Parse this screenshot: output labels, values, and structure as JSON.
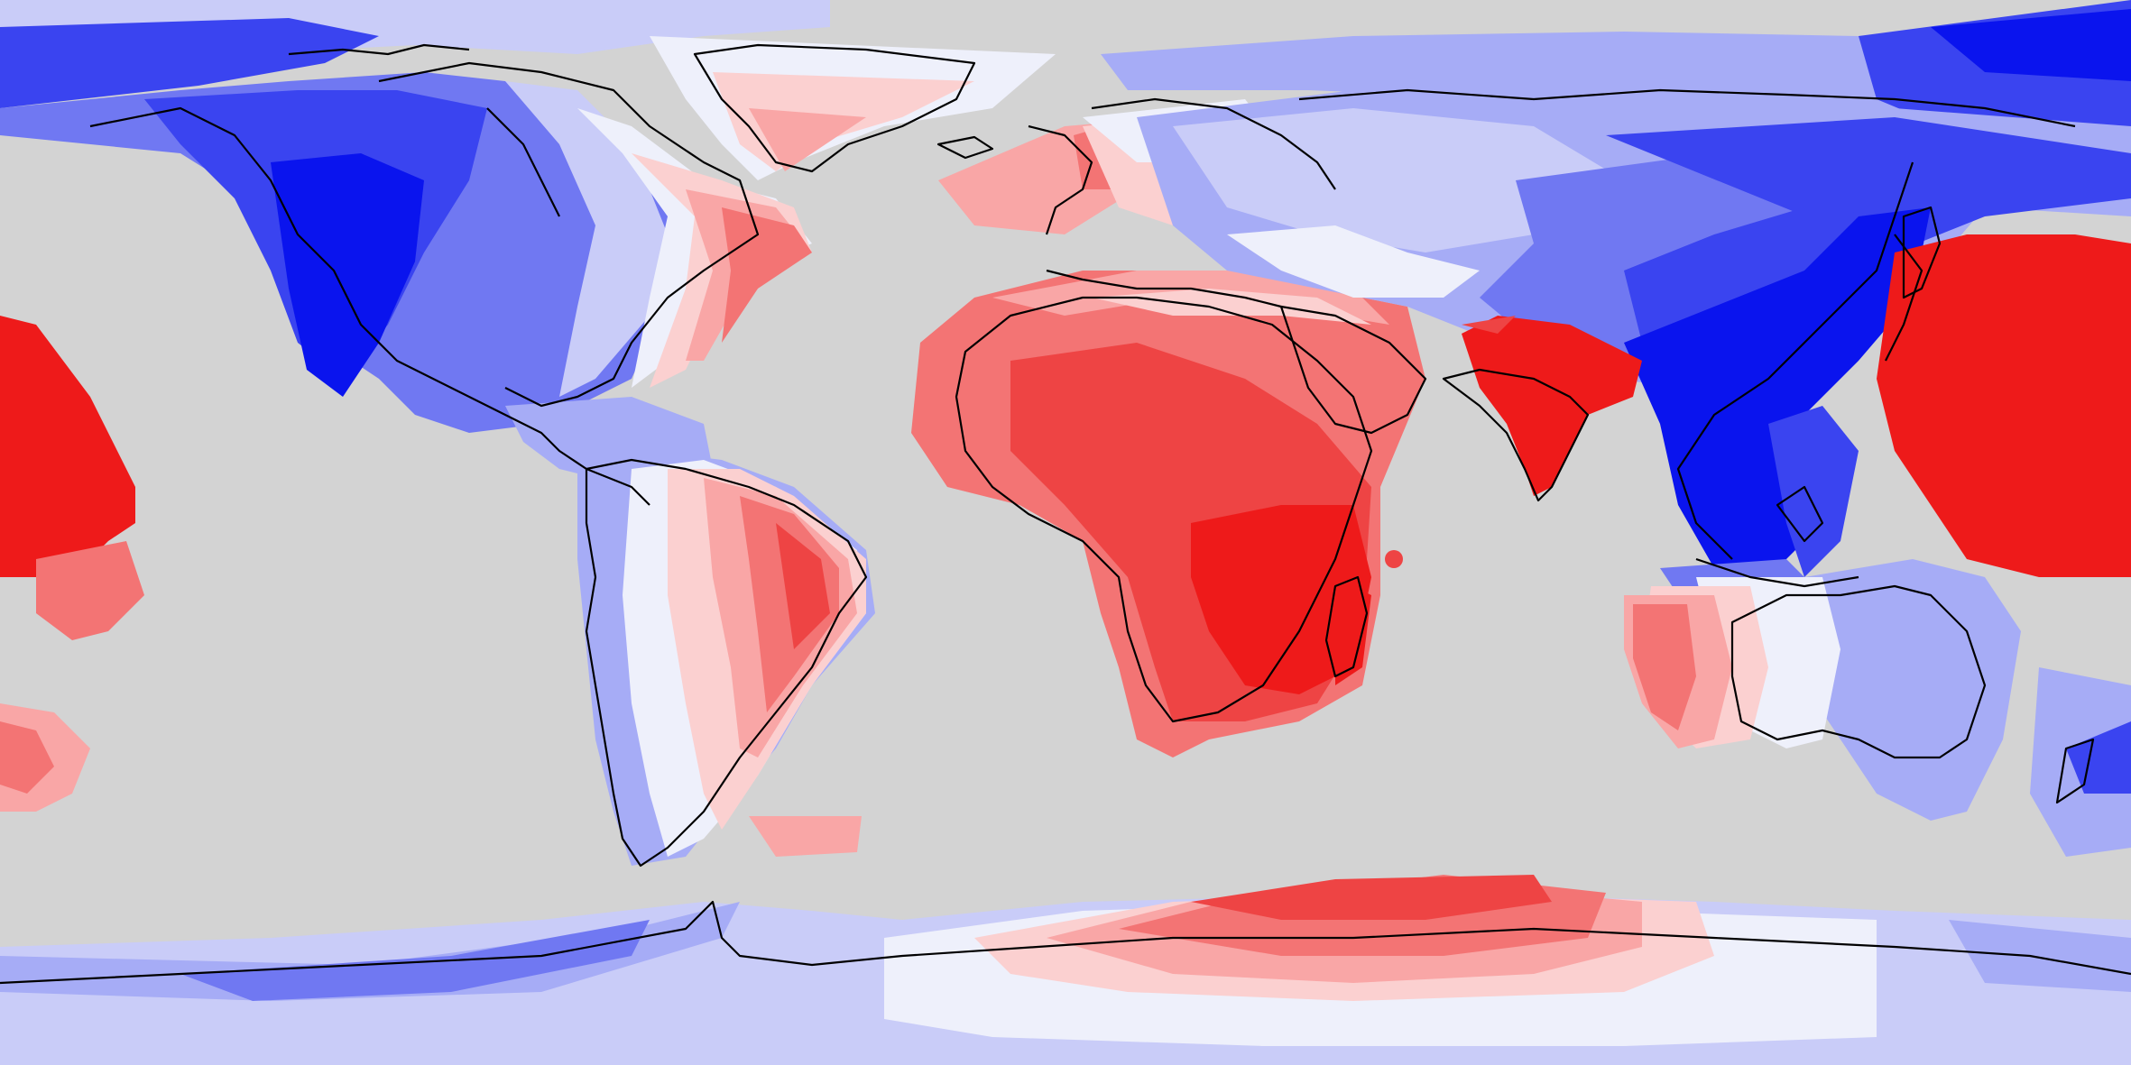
{
  "map": {
    "projection": "equirectangular",
    "background_color": "#d3d3d3",
    "coastline_color": "#000000",
    "palette": {
      "strong_blue": "#0a14ee",
      "blue": "#3a44f0",
      "mid_blue": "#7078f2",
      "light_blue": "#a6acf6",
      "pale_blue": "#c9ccf8",
      "near_white": "#eef0fb",
      "pale_red": "#fbd0d0",
      "light_red": "#f9a6a6",
      "mid_red": "#f37474",
      "red": "#ee4444",
      "strong_red": "#ee1a1a"
    },
    "regions": [
      "north-america",
      "greenland",
      "south-america",
      "europe",
      "africa",
      "asia",
      "india",
      "east-asia",
      "australia",
      "antarctica",
      "north-pacific",
      "south-indian-ocean"
    ]
  }
}
